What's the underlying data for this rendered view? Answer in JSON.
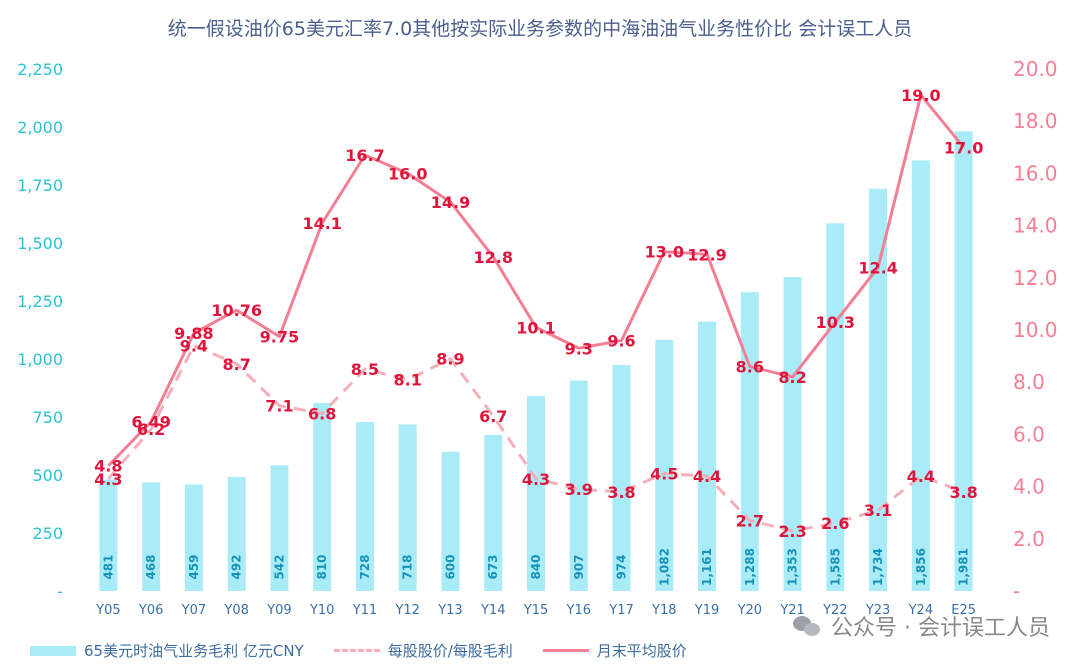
{
  "chart_data": {
    "type": "bar+line",
    "title": "统一假设油价65美元汇率7.0其他按实际业务参数的中海油油气业务性价比 会计误工人员",
    "categories": [
      "Y05",
      "Y06",
      "Y07",
      "Y08",
      "Y09",
      "Y10",
      "Y11",
      "Y12",
      "Y13",
      "Y14",
      "Y15",
      "Y16",
      "Y17",
      "Y18",
      "Y19",
      "Y20",
      "Y21",
      "Y22",
      "Y23",
      "Y24",
      "E25"
    ],
    "left_axis": {
      "range": [
        0,
        2250
      ],
      "ticks": [
        "-",
        "250",
        "500",
        "750",
        "1,000",
        "1,250",
        "1,500",
        "1,750",
        "2,000",
        "2,250"
      ]
    },
    "right_axis": {
      "range": [
        0,
        20
      ],
      "ticks": [
        "-",
        "2.0",
        "4.0",
        "6.0",
        "8.0",
        "10.0",
        "12.0",
        "14.0",
        "16.0",
        "18.0",
        "20.0"
      ]
    },
    "series": [
      {
        "name": "65美元时油气业务毛利 亿元CNY",
        "kind": "bar",
        "axis": "left",
        "values": [
          481,
          468,
          459,
          492,
          542,
          810,
          728,
          718,
          600,
          673,
          840,
          907,
          974,
          1082,
          1161,
          1288,
          1353,
          1585,
          1734,
          1856,
          1981
        ],
        "labels": [
          "481",
          "468",
          "459",
          "492",
          "542",
          "810",
          "728",
          "718",
          "600",
          "673",
          "840",
          "907",
          "974",
          "1,082",
          "1,161",
          "1,288",
          "1,353",
          "1,585",
          "1,734",
          "1,856",
          "1,981"
        ]
      },
      {
        "name": "每股股价/每股毛利",
        "kind": "dashed-line",
        "axis": "right",
        "values": [
          4.3,
          6.2,
          9.4,
          8.7,
          7.1,
          6.8,
          8.5,
          8.1,
          8.9,
          6.7,
          4.3,
          3.9,
          3.8,
          4.5,
          4.4,
          2.7,
          2.3,
          2.6,
          3.1,
          4.4,
          3.8
        ],
        "labels": [
          "4.3",
          "6.2",
          "9.4",
          "8.7",
          "7.1",
          "6.8",
          "8.5",
          "8.1",
          "8.9",
          "6.7",
          "4.3",
          "3.9",
          "3.8",
          "4.5",
          "4.4",
          "2.7",
          "2.3",
          "2.6",
          "3.1",
          "4.4",
          "3.8"
        ]
      },
      {
        "name": "月末平均股价",
        "kind": "line",
        "axis": "right",
        "values": [
          4.8,
          6.49,
          9.88,
          10.76,
          9.75,
          14.1,
          16.7,
          16.0,
          14.9,
          12.8,
          10.1,
          9.3,
          9.6,
          13.0,
          12.9,
          8.6,
          8.2,
          10.3,
          12.4,
          19.0,
          17.0
        ],
        "labels": [
          "4.8",
          "6.49",
          "9.88",
          "10.76",
          "9.75",
          "14.1",
          "16.7",
          "16.0",
          "14.9",
          "12.8",
          "10.1",
          "9.3",
          "9.6",
          "13.0",
          "12.9",
          "8.6",
          "8.2",
          "10.3",
          "12.4",
          "19.0",
          "17.0"
        ]
      }
    ],
    "colors": {
      "bar": "#a9ecf8",
      "dashed_line": "#f6aeb9",
      "line": "#f47f95",
      "point_label": "#e0153c",
      "bar_label": "#1793b8",
      "left_axis": "#2cc1d6",
      "right_axis": "#f47f95"
    },
    "grid": false,
    "legend_position": "bottom-left"
  },
  "legend": [
    {
      "label": "65美元时油气业务毛利 亿元CNY"
    },
    {
      "label": "每股股价/每股毛利"
    },
    {
      "label": "月末平均股价"
    }
  ],
  "watermark": {
    "icon": "wechat-icon",
    "text": "公众号 · 会计误工人员"
  }
}
